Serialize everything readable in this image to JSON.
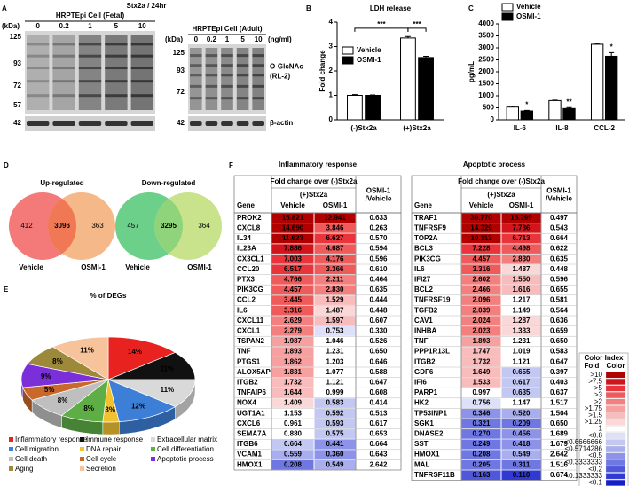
{
  "panel_labels": [
    "A",
    "B",
    "C",
    "D",
    "E",
    "F"
  ],
  "blot": {
    "title": "Stx2a / 24hr",
    "unit": "(ng/ml)",
    "kda_label": "(kDa)",
    "lanes": [
      "0",
      "0.2",
      "1",
      "5",
      "10"
    ],
    "fetal": {
      "title": "HRPTEpi Cell (Fetal)",
      "markers": [
        "125",
        "93",
        "72",
        "57",
        "42"
      ]
    },
    "adult": {
      "title": "HRPTEpi Cell (Adult)",
      "markers": [
        "125",
        "93",
        "72",
        "42"
      ]
    },
    "target": "O-GlcNAc (RL-2)",
    "control": "β-actin"
  },
  "chart_data": [
    {
      "type": "bar",
      "title": "LDH release",
      "ylabel": "Fold change",
      "categories": [
        "(-)Stx2a",
        "(+)Stx2a"
      ],
      "series": [
        {
          "name": "Vehicle",
          "color": "#ffffff",
          "values": [
            1.0,
            3.35
          ],
          "errors": [
            0.03,
            0.06
          ]
        },
        {
          "name": "OSMI-1",
          "color": "#000000",
          "values": [
            1.0,
            2.55
          ],
          "errors": [
            0.02,
            0.05
          ]
        }
      ],
      "ylim": [
        0,
        4
      ],
      "yticks": [
        0,
        1,
        2,
        3,
        4
      ],
      "annotations": [
        "***",
        "***"
      ]
    },
    {
      "type": "bar",
      "ylabel": "pg/mL",
      "categories": [
        "IL-6",
        "IL-8",
        "CCL-2"
      ],
      "series": [
        {
          "name": "Vehicle",
          "color": "#ffffff",
          "values": [
            530,
            800,
            3150
          ],
          "errors": [
            40,
            20,
            40
          ]
        },
        {
          "name": "OSMI-1",
          "color": "#000000",
          "values": [
            370,
            470,
            2650
          ],
          "errors": [
            25,
            40,
            150
          ]
        }
      ],
      "ylim": [
        0,
        4000
      ],
      "yticks": [
        0,
        500,
        1000,
        1500,
        2000,
        2500,
        3000,
        3500,
        4000
      ],
      "annotations": [
        "*",
        "**",
        "*"
      ]
    },
    {
      "type": "pie",
      "title": "% of DEGs",
      "categories": [
        "Inflammatory response",
        "Immune response",
        "Extracellular matrix",
        "Cell migration",
        "DNA repair",
        "Cell differentiation",
        "Cell death",
        "Cell cycle",
        "Apoptotic process",
        "Aging",
        "Secretion"
      ],
      "values": [
        14,
        11,
        11,
        12,
        3,
        8,
        8,
        5,
        9,
        8,
        11
      ],
      "value_labels": [
        "14%",
        "11%",
        "11%",
        "12%",
        "3%",
        "8%",
        "8%",
        "5%",
        "9%",
        "8%",
        "11%"
      ],
      "colors": [
        "#e8231f",
        "#111111",
        "#d9d9d9",
        "#3d7fd6",
        "#f2c12e",
        "#5fae45",
        "#bfbfbf",
        "#c8682a",
        "#7a2fd8",
        "#9c8a3a",
        "#f6c39a"
      ]
    }
  ],
  "venn": {
    "set_labels": [
      "Vehicle",
      "OSMI-1"
    ],
    "diagrams": [
      {
        "title": "Up-regulated",
        "left": "412",
        "center": "3096",
        "right": "363"
      },
      {
        "title": "Down-regulated",
        "left": "457",
        "center": "3295",
        "right": "364"
      }
    ]
  },
  "tables": [
    {
      "title": "Inflammatory response",
      "headers": {
        "gene": "Gene",
        "group": "Fold change over (-)Stx2a",
        "sub": "(+)Stx2a",
        "vehicle": "Vehicle",
        "osmi": "OSMI-1",
        "ratio": "OSMI-1 /Vehicle"
      },
      "rows": [
        [
          "PROK2",
          "15.821",
          "12.941",
          "0.633"
        ],
        [
          "CXCL8",
          "14.690",
          "3.846",
          "0.263"
        ],
        [
          "IL34",
          "11.623",
          "6.627",
          "0.570"
        ],
        [
          "IL23A",
          "7.886",
          "4.687",
          "0.594"
        ],
        [
          "CX3CL1",
          "7.003",
          "4.176",
          "0.596"
        ],
        [
          "CCL20",
          "6.517",
          "3.366",
          "0.610"
        ],
        [
          "PTX3",
          "4.766",
          "2.211",
          "0.464"
        ],
        [
          "PIK3CG",
          "4.457",
          "2.830",
          "0.635"
        ],
        [
          "CCL2",
          "3.445",
          "1.529",
          "0.444"
        ],
        [
          "IL6",
          "3.316",
          "1.487",
          "0.448"
        ],
        [
          "CXCL11",
          "2.629",
          "1.597",
          "0.607"
        ],
        [
          "CXCL1",
          "2.279",
          "0.753",
          "0.330"
        ],
        [
          "TSPAN2",
          "1.987",
          "1.046",
          "0.526"
        ],
        [
          "TNF",
          "1.893",
          "1.231",
          "0.650"
        ],
        [
          "PTGS1",
          "1.862",
          "1.203",
          "0.646"
        ],
        [
          "ALOX5AP",
          "1.831",
          "1.077",
          "0.588"
        ],
        [
          "ITGB2",
          "1.732",
          "1.121",
          "0.647"
        ],
        [
          "TNFAIP6",
          "1.644",
          "0.999",
          "0.608"
        ],
        [
          "NOX4",
          "1.409",
          "0.583",
          "0.414"
        ],
        [
          "UGT1A1",
          "1.153",
          "0.592",
          "0.513"
        ],
        [
          "CXCL6",
          "0.961",
          "0.593",
          "0.617"
        ],
        [
          "SEMA7A",
          "0.880",
          "0.575",
          "0.653"
        ],
        [
          "ITGB6",
          "0.664",
          "0.441",
          "0.664"
        ],
        [
          "VCAM1",
          "0.559",
          "0.360",
          "0.643"
        ],
        [
          "HMOX1",
          "0.208",
          "0.549",
          "2.642"
        ]
      ]
    },
    {
      "title": "Apoptotic process",
      "headers": {
        "gene": "Gene",
        "group": "Fold change over (-)Stx2a",
        "sub": "(+)Stx2a",
        "vehicle": "Vehicle",
        "osmi": "OSMI-1",
        "ratio": "OSMI-1 /Vehicle"
      },
      "rows": [
        [
          "TRAF1",
          "30.770",
          "15.299",
          "0.497"
        ],
        [
          "TNFRSF9",
          "14.329",
          "7.786",
          "0.543"
        ],
        [
          "TOP2A",
          "10.113",
          "6.713",
          "0.664"
        ],
        [
          "BCL3",
          "7.228",
          "4.498",
          "0.622"
        ],
        [
          "PIK3CG",
          "4.457",
          "2.830",
          "0.635"
        ],
        [
          "IL6",
          "3.316",
          "1.487",
          "0.448"
        ],
        [
          "IFI27",
          "2.602",
          "1.550",
          "0.596"
        ],
        [
          "BCL2",
          "2.466",
          "1.616",
          "0.655"
        ],
        [
          "TNFRSF19",
          "2.096",
          "1.217",
          "0.581"
        ],
        [
          "TGFB2",
          "2.039",
          "1.149",
          "0.564"
        ],
        [
          "CAV1",
          "2.024",
          "1.287",
          "0.636"
        ],
        [
          "INHBA",
          "2.023",
          "1.333",
          "0.659"
        ],
        [
          "TNF",
          "1.893",
          "1.231",
          "0.650"
        ],
        [
          "PPP1R13L",
          "1.747",
          "1.019",
          "0.583"
        ],
        [
          "ITGB2",
          "1.732",
          "1.121",
          "0.647"
        ],
        [
          "GDF6",
          "1.649",
          "0.655",
          "0.397"
        ],
        [
          "IFI6",
          "1.533",
          "0.617",
          "0.403"
        ],
        [
          "PARP1",
          "0.997",
          "0.635",
          "0.637"
        ],
        [
          "HK2",
          "0.756",
          "1.147",
          "1.517"
        ],
        [
          "TP53INP1",
          "0.346",
          "0.520",
          "1.504"
        ],
        [
          "SGK1",
          "0.321",
          "0.209",
          "0.650"
        ],
        [
          "DNASE2",
          "0.270",
          "0.456",
          "1.689"
        ],
        [
          "SST",
          "0.249",
          "0.418",
          "1.679"
        ],
        [
          "HMOX1",
          "0.208",
          "0.549",
          "2.642"
        ],
        [
          "MAL",
          "0.205",
          "0.311",
          "1.516"
        ],
        [
          "TNFRSF11B",
          "0.163",
          "0.110",
          "0.674"
        ]
      ]
    }
  ],
  "color_index": {
    "title": "Color Index",
    "fold": "Fold",
    "color": "Color",
    "items": [
      {
        "label": ">10",
        "color": "#b00000"
      },
      {
        "label": ">7.5",
        "color": "#d4141b"
      },
      {
        "label": ">5",
        "color": "#e8343a"
      },
      {
        "label": ">3",
        "color": "#ef5b5b"
      },
      {
        "label": ">2",
        "color": "#f47f7f"
      },
      {
        "label": ">1.75",
        "color": "#f6a0a0"
      },
      {
        "label": ">1.5",
        "color": "#f8bcbc"
      },
      {
        "label": ">1.25",
        "color": "#fbd8d8"
      },
      {
        "label": "1",
        "color": "#ffffff"
      },
      {
        "label": "<0.8",
        "color": "#dde0f8"
      },
      {
        "label": "<0.6666666",
        "color": "#c3c8f3"
      },
      {
        "label": "<0.5714286",
        "color": "#a8aeee"
      },
      {
        "label": "<0.5",
        "color": "#8c93e8"
      },
      {
        "label": "<0.3333333",
        "color": "#6f77e3"
      },
      {
        "label": "<0.2",
        "color": "#4f58dc"
      },
      {
        "label": "<0.1333333",
        "color": "#3039d4"
      },
      {
        "label": "<0.1",
        "color": "#1420c8"
      }
    ]
  }
}
